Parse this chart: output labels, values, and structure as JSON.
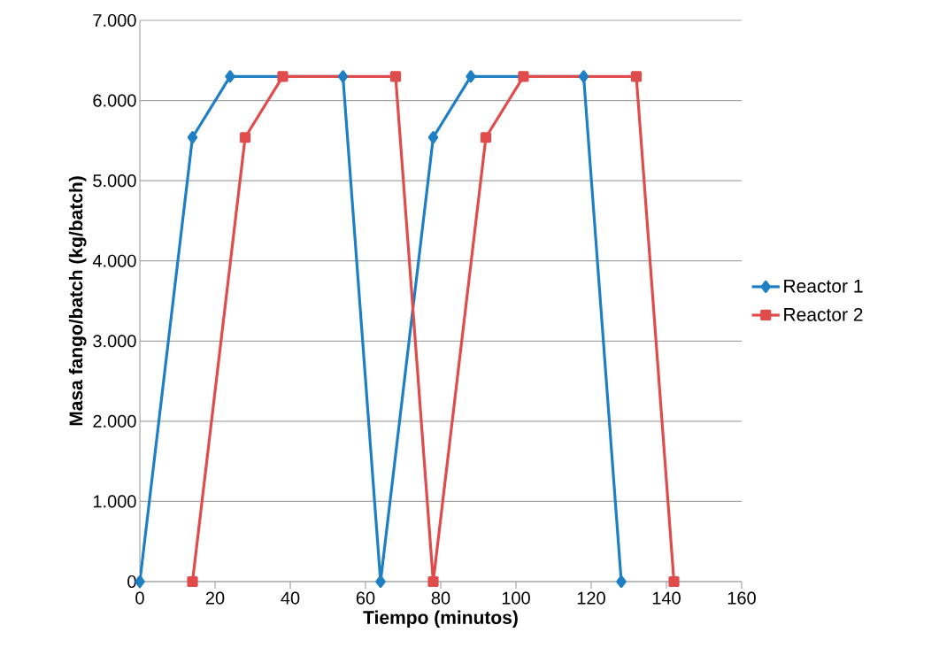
{
  "chart_data": {
    "type": "line",
    "xlabel": "Tiempo (minutos)",
    "ylabel": "Masa fango/batch (kg/batch)",
    "xlim": [
      0,
      160
    ],
    "xticks": [
      0,
      20,
      40,
      60,
      80,
      100,
      120,
      140,
      160
    ],
    "ylim": [
      0,
      7000
    ],
    "yticks": [
      {
        "value": 0,
        "label": "0"
      },
      {
        "value": 1000,
        "label": "1.000"
      },
      {
        "value": 2000,
        "label": "2.000"
      },
      {
        "value": 3000,
        "label": "3.000"
      },
      {
        "value": 4000,
        "label": "4.000"
      },
      {
        "value": 5000,
        "label": "5.000"
      },
      {
        "value": 6000,
        "label": "6.000"
      },
      {
        "value": 7000,
        "label": "7.000"
      }
    ],
    "grid": "y",
    "legend": "right",
    "line_style": "solid",
    "series": [
      {
        "name": "Reactor 1",
        "color": "#1f7fc4",
        "marker": "diamond",
        "x": [
          0,
          14,
          24,
          54,
          64,
          78,
          88,
          118,
          128
        ],
        "values": [
          0,
          5540,
          6300,
          6300,
          0,
          5540,
          6300,
          6300,
          0
        ]
      },
      {
        "name": "Reactor 2",
        "color": "#e04b4b",
        "marker": "square",
        "x": [
          14,
          28,
          38,
          68,
          78,
          92,
          102,
          132,
          142
        ],
        "values": [
          0,
          5540,
          6300,
          6300,
          0,
          5540,
          6300,
          6300,
          0
        ]
      }
    ]
  }
}
